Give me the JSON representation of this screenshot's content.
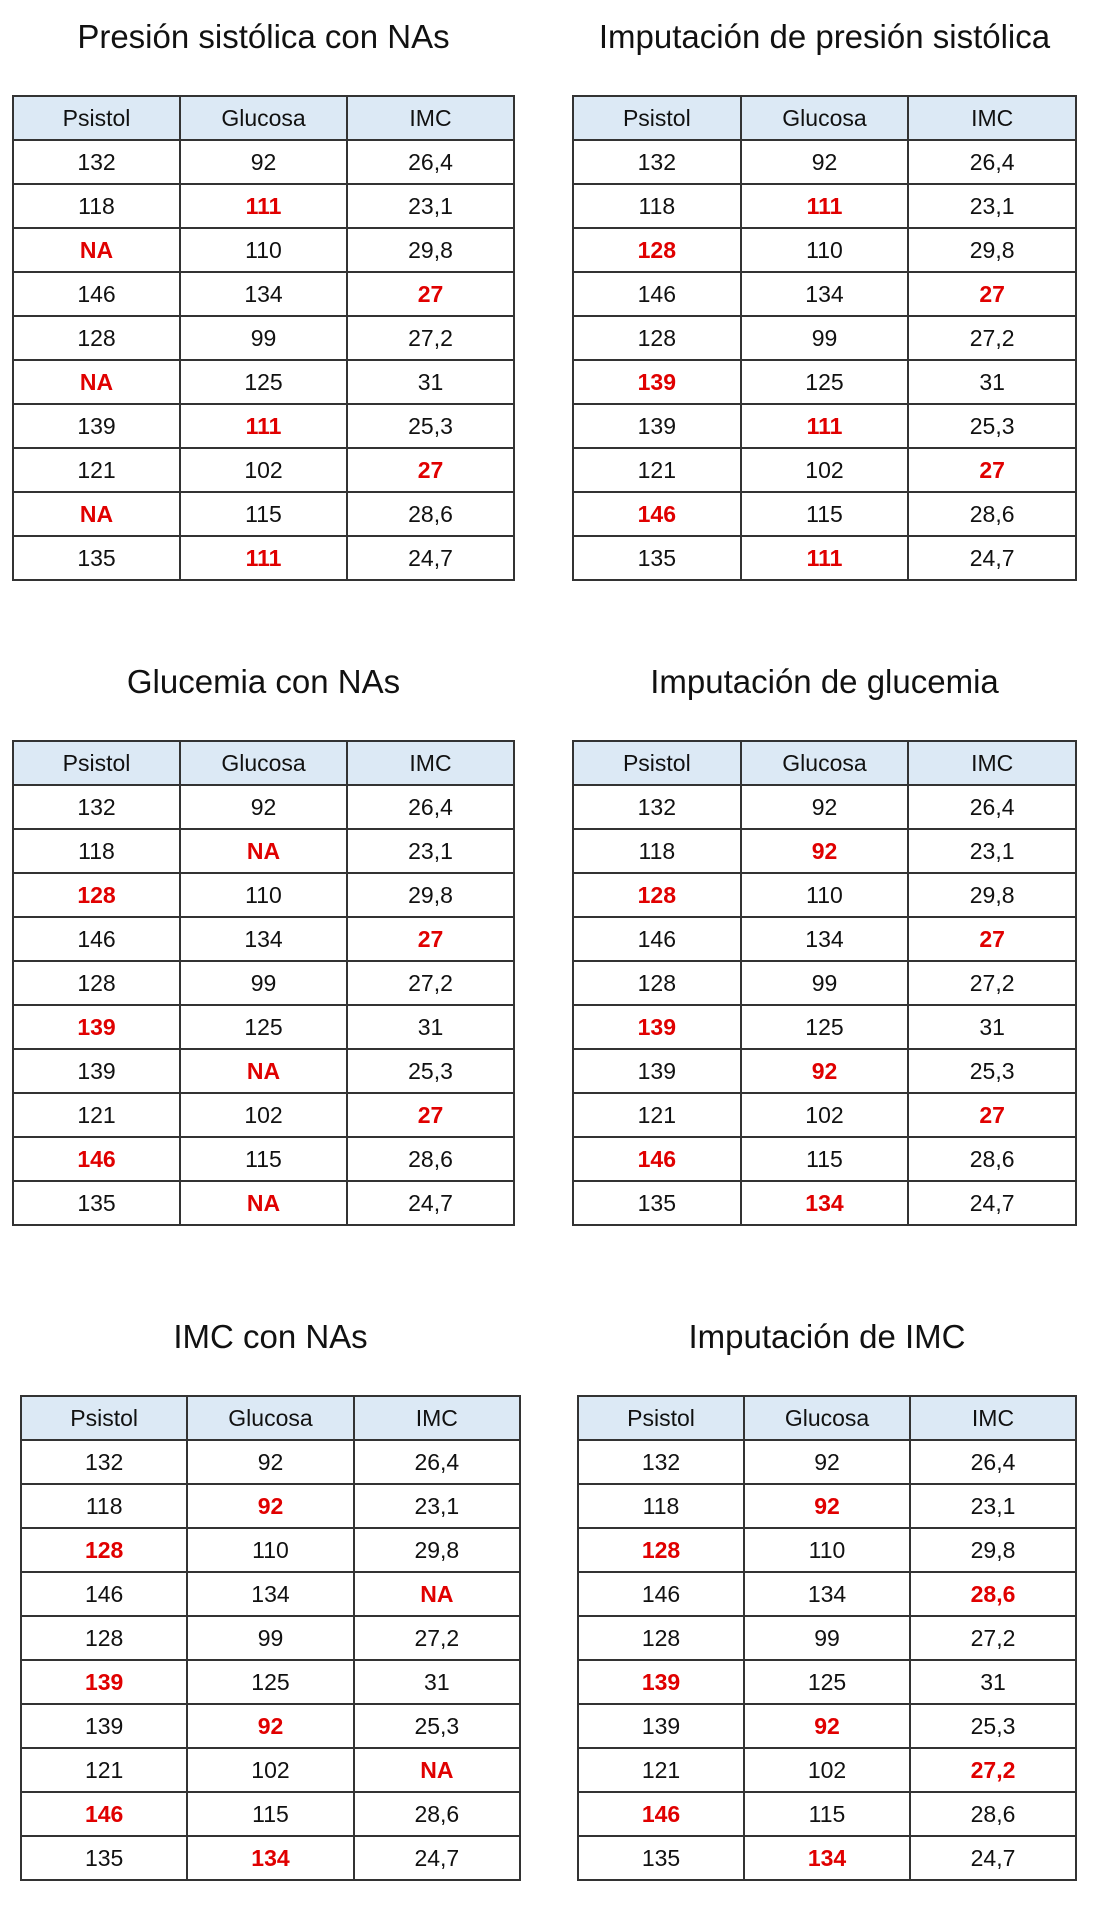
{
  "headers": [
    "Psistol",
    "Glucosa",
    "IMC"
  ],
  "colors": {
    "header_bg": "#dce9f5",
    "highlight": "#e00000"
  },
  "tables": [
    {
      "title": "Presión sistólica con NAs",
      "rows": [
        [
          {
            "v": "132"
          },
          {
            "v": "92"
          },
          {
            "v": "26,4"
          }
        ],
        [
          {
            "v": "118"
          },
          {
            "v": "111",
            "red": true
          },
          {
            "v": "23,1"
          }
        ],
        [
          {
            "v": "NA",
            "red": true
          },
          {
            "v": "110"
          },
          {
            "v": "29,8"
          }
        ],
        [
          {
            "v": "146"
          },
          {
            "v": "134"
          },
          {
            "v": "27",
            "red": true
          }
        ],
        [
          {
            "v": "128"
          },
          {
            "v": "99"
          },
          {
            "v": "27,2"
          }
        ],
        [
          {
            "v": "NA",
            "red": true
          },
          {
            "v": "125"
          },
          {
            "v": "31"
          }
        ],
        [
          {
            "v": "139"
          },
          {
            "v": "111",
            "red": true
          },
          {
            "v": "25,3"
          }
        ],
        [
          {
            "v": "121"
          },
          {
            "v": "102"
          },
          {
            "v": "27",
            "red": true
          }
        ],
        [
          {
            "v": "NA",
            "red": true
          },
          {
            "v": "115"
          },
          {
            "v": "28,6"
          }
        ],
        [
          {
            "v": "135"
          },
          {
            "v": "111",
            "red": true
          },
          {
            "v": "24,7"
          }
        ]
      ]
    },
    {
      "title": "Imputación de presión sistólica",
      "rows": [
        [
          {
            "v": "132"
          },
          {
            "v": "92"
          },
          {
            "v": "26,4"
          }
        ],
        [
          {
            "v": "118"
          },
          {
            "v": "111",
            "red": true
          },
          {
            "v": "23,1"
          }
        ],
        [
          {
            "v": "128",
            "red": true
          },
          {
            "v": "110"
          },
          {
            "v": "29,8"
          }
        ],
        [
          {
            "v": "146"
          },
          {
            "v": "134"
          },
          {
            "v": "27",
            "red": true
          }
        ],
        [
          {
            "v": "128"
          },
          {
            "v": "99"
          },
          {
            "v": "27,2"
          }
        ],
        [
          {
            "v": "139",
            "red": true
          },
          {
            "v": "125"
          },
          {
            "v": "31"
          }
        ],
        [
          {
            "v": "139"
          },
          {
            "v": "111",
            "red": true
          },
          {
            "v": "25,3"
          }
        ],
        [
          {
            "v": "121"
          },
          {
            "v": "102"
          },
          {
            "v": "27",
            "red": true
          }
        ],
        [
          {
            "v": "146",
            "red": true
          },
          {
            "v": "115"
          },
          {
            "v": "28,6"
          }
        ],
        [
          {
            "v": "135"
          },
          {
            "v": "111",
            "red": true
          },
          {
            "v": "24,7"
          }
        ]
      ]
    },
    {
      "title": "Glucemia con NAs",
      "rows": [
        [
          {
            "v": "132"
          },
          {
            "v": "92"
          },
          {
            "v": "26,4"
          }
        ],
        [
          {
            "v": "118"
          },
          {
            "v": "NA",
            "red": true
          },
          {
            "v": "23,1"
          }
        ],
        [
          {
            "v": "128",
            "red": true
          },
          {
            "v": "110"
          },
          {
            "v": "29,8"
          }
        ],
        [
          {
            "v": "146"
          },
          {
            "v": "134"
          },
          {
            "v": "27",
            "red": true
          }
        ],
        [
          {
            "v": "128"
          },
          {
            "v": "99"
          },
          {
            "v": "27,2"
          }
        ],
        [
          {
            "v": "139",
            "red": true
          },
          {
            "v": "125"
          },
          {
            "v": "31"
          }
        ],
        [
          {
            "v": "139"
          },
          {
            "v": "NA",
            "red": true
          },
          {
            "v": "25,3"
          }
        ],
        [
          {
            "v": "121"
          },
          {
            "v": "102"
          },
          {
            "v": "27",
            "red": true
          }
        ],
        [
          {
            "v": "146",
            "red": true
          },
          {
            "v": "115"
          },
          {
            "v": "28,6"
          }
        ],
        [
          {
            "v": "135"
          },
          {
            "v": "NA",
            "red": true
          },
          {
            "v": "24,7"
          }
        ]
      ]
    },
    {
      "title": "Imputación de glucemia",
      "rows": [
        [
          {
            "v": "132"
          },
          {
            "v": "92"
          },
          {
            "v": "26,4"
          }
        ],
        [
          {
            "v": "118"
          },
          {
            "v": "92",
            "red": true
          },
          {
            "v": "23,1"
          }
        ],
        [
          {
            "v": "128",
            "red": true
          },
          {
            "v": "110"
          },
          {
            "v": "29,8"
          }
        ],
        [
          {
            "v": "146"
          },
          {
            "v": "134"
          },
          {
            "v": "27",
            "red": true
          }
        ],
        [
          {
            "v": "128"
          },
          {
            "v": "99"
          },
          {
            "v": "27,2"
          }
        ],
        [
          {
            "v": "139",
            "red": true
          },
          {
            "v": "125"
          },
          {
            "v": "31"
          }
        ],
        [
          {
            "v": "139"
          },
          {
            "v": "92",
            "red": true
          },
          {
            "v": "25,3"
          }
        ],
        [
          {
            "v": "121"
          },
          {
            "v": "102"
          },
          {
            "v": "27",
            "red": true
          }
        ],
        [
          {
            "v": "146",
            "red": true
          },
          {
            "v": "115"
          },
          {
            "v": "28,6"
          }
        ],
        [
          {
            "v": "135"
          },
          {
            "v": "134",
            "red": true
          },
          {
            "v": "24,7"
          }
        ]
      ]
    },
    {
      "title": "IMC con NAs",
      "rows": [
        [
          {
            "v": "132"
          },
          {
            "v": "92"
          },
          {
            "v": "26,4"
          }
        ],
        [
          {
            "v": "118"
          },
          {
            "v": "92",
            "red": true
          },
          {
            "v": "23,1"
          }
        ],
        [
          {
            "v": "128",
            "red": true
          },
          {
            "v": "110"
          },
          {
            "v": "29,8"
          }
        ],
        [
          {
            "v": "146"
          },
          {
            "v": "134"
          },
          {
            "v": "NA",
            "red": true
          }
        ],
        [
          {
            "v": "128"
          },
          {
            "v": "99"
          },
          {
            "v": "27,2"
          }
        ],
        [
          {
            "v": "139",
            "red": true
          },
          {
            "v": "125"
          },
          {
            "v": "31"
          }
        ],
        [
          {
            "v": "139"
          },
          {
            "v": "92",
            "red": true
          },
          {
            "v": "25,3"
          }
        ],
        [
          {
            "v": "121"
          },
          {
            "v": "102"
          },
          {
            "v": "NA",
            "red": true
          }
        ],
        [
          {
            "v": "146",
            "red": true
          },
          {
            "v": "115"
          },
          {
            "v": "28,6"
          }
        ],
        [
          {
            "v": "135"
          },
          {
            "v": "134",
            "red": true
          },
          {
            "v": "24,7"
          }
        ]
      ]
    },
    {
      "title": "Imputación de IMC",
      "rows": [
        [
          {
            "v": "132"
          },
          {
            "v": "92"
          },
          {
            "v": "26,4"
          }
        ],
        [
          {
            "v": "118"
          },
          {
            "v": "92",
            "red": true
          },
          {
            "v": "23,1"
          }
        ],
        [
          {
            "v": "128",
            "red": true
          },
          {
            "v": "110"
          },
          {
            "v": "29,8"
          }
        ],
        [
          {
            "v": "146"
          },
          {
            "v": "134"
          },
          {
            "v": "28,6",
            "red": true
          }
        ],
        [
          {
            "v": "128"
          },
          {
            "v": "99"
          },
          {
            "v": "27,2"
          }
        ],
        [
          {
            "v": "139",
            "red": true
          },
          {
            "v": "125"
          },
          {
            "v": "31"
          }
        ],
        [
          {
            "v": "139"
          },
          {
            "v": "92",
            "red": true
          },
          {
            "v": "25,3"
          }
        ],
        [
          {
            "v": "121"
          },
          {
            "v": "102"
          },
          {
            "v": "27,2",
            "red": true
          }
        ],
        [
          {
            "v": "146",
            "red": true
          },
          {
            "v": "115"
          },
          {
            "v": "28,6"
          }
        ],
        [
          {
            "v": "135"
          },
          {
            "v": "134",
            "red": true
          },
          {
            "v": "24,7"
          }
        ]
      ]
    }
  ]
}
